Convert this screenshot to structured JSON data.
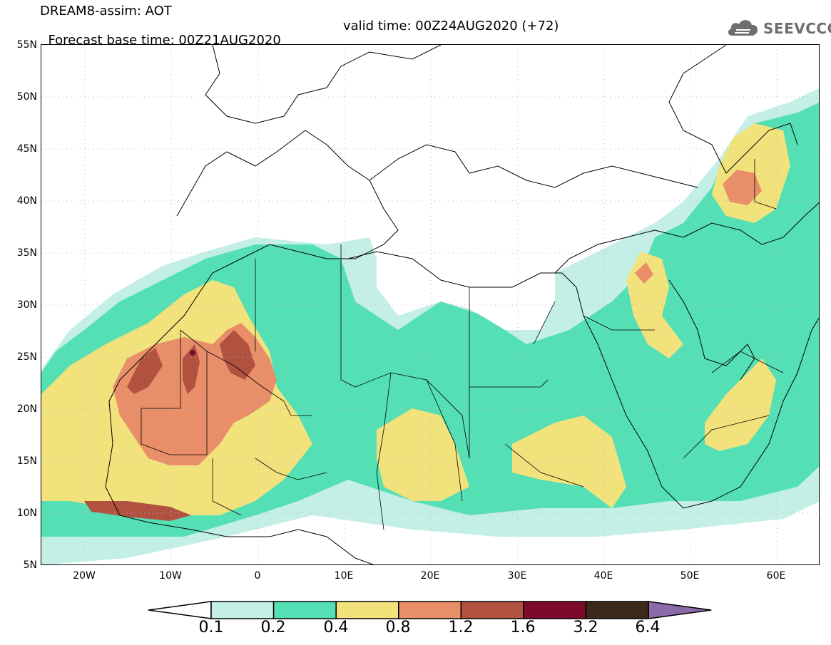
{
  "header": {
    "title": "DREAM8-assim: AOT",
    "base_time": "Forecast base time: 00Z21AUG2020",
    "valid_time": "valid time: 00Z24AUG2020 (+72)"
  },
  "logo": {
    "text": "SEEVCCC",
    "icon": "cloud-icon"
  },
  "axes": {
    "lat_labels": [
      "55N",
      "50N",
      "45N",
      "40N",
      "35N",
      "30N",
      "25N",
      "20N",
      "15N",
      "10N",
      "5N"
    ],
    "lon_labels": [
      "20W",
      "10W",
      "0",
      "10E",
      "20E",
      "30E",
      "40E",
      "50E",
      "60E"
    ],
    "lon_range": [
      -25,
      65
    ],
    "lat_range": [
      5,
      55
    ],
    "grid": true
  },
  "colorbar": {
    "labels": [
      "0.1",
      "0.2",
      "0.4",
      "0.8",
      "1.2",
      "1.6",
      "3.2",
      "6.4"
    ],
    "colors": [
      "#ffffff",
      "#c4efe6",
      "#55dfb4",
      "#f2e27c",
      "#e88e68",
      "#b0523f",
      "#7c0a2b",
      "#3b2a1a",
      "#8a6aa8"
    ]
  },
  "map_layers": {
    "variable": "AOT",
    "colors": {
      "light_cyan": "#c4efe6",
      "green": "#55dfb4",
      "yellow": "#f2e27c",
      "salmon": "#e88e68",
      "brown": "#b0523f",
      "maroon": "#7c0a2b"
    }
  }
}
